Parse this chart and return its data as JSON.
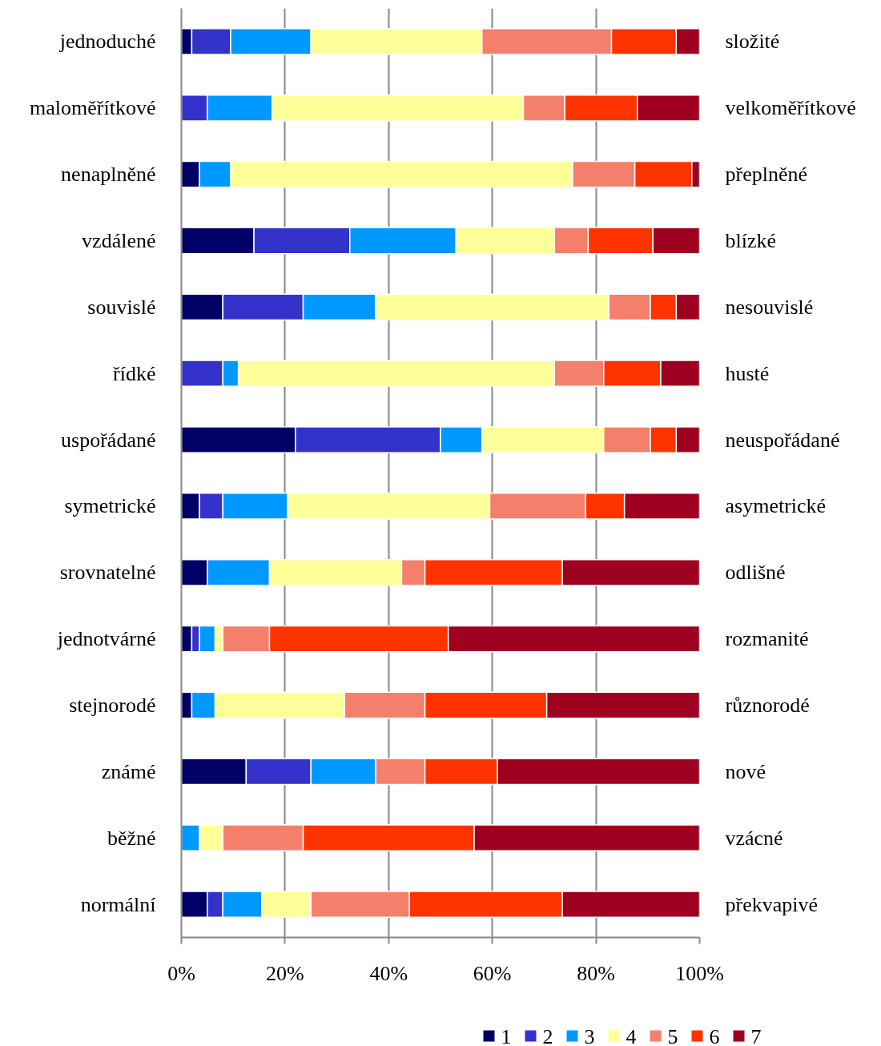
{
  "chart_data": {
    "type": "bar",
    "orientation": "horizontal",
    "stacked": true,
    "categories": [
      "jednoduché",
      "maloměřítkové",
      "nenaplněné",
      "vzdálené",
      "souvislé",
      "řídké",
      "uspořádané",
      "symetrické",
      "srovnatelné",
      "jednotvárné",
      "stejnorodé",
      "známé",
      "běžné",
      "normální"
    ],
    "y2_categories": [
      "složité",
      "velkoměřítkové",
      "přeplněné",
      "blízké",
      "nesouvislé",
      "husté",
      "neuspořádané",
      "asymetrické",
      "odlišné",
      "rozmanité",
      "různorodé",
      "nové",
      "vzácné",
      "překvapivé"
    ],
    "series": [
      {
        "name": "1",
        "color": "#000066",
        "values": [
          2,
          0,
          3.5,
          14,
          8,
          0,
          22,
          3.5,
          5,
          2,
          2,
          12.5,
          0,
          5
        ]
      },
      {
        "name": "2",
        "color": "#3333cc",
        "values": [
          7.5,
          5,
          0,
          18.5,
          15.5,
          8,
          28,
          4.5,
          0,
          1.5,
          0,
          12.5,
          0,
          3
        ]
      },
      {
        "name": "3",
        "color": "#0099ff",
        "values": [
          15.5,
          12.5,
          6,
          20.5,
          14,
          3,
          8,
          12.5,
          12,
          3,
          4.5,
          12.5,
          3.5,
          7.5
        ]
      },
      {
        "name": "4",
        "color": "#ffff99",
        "values": [
          33,
          48.5,
          66,
          19,
          45,
          61,
          23.5,
          39,
          25.5,
          1.5,
          25,
          0,
          4.5,
          9.5
        ]
      },
      {
        "name": "5",
        "color": "#f4806c",
        "values": [
          25,
          8,
          12,
          6.5,
          8,
          9.5,
          9,
          18.5,
          4.5,
          9,
          15.5,
          9.5,
          15.5,
          19
        ]
      },
      {
        "name": "6",
        "color": "#ff3300",
        "values": [
          12.5,
          14,
          11,
          12.5,
          5,
          11,
          5,
          7.5,
          26.5,
          34.5,
          23.5,
          14,
          33,
          29.5
        ]
      },
      {
        "name": "7",
        "color": "#a00020",
        "values": [
          4.5,
          12,
          1.5,
          9,
          4.5,
          7.5,
          4.5,
          14.5,
          26.5,
          48.5,
          29.5,
          39,
          43.5,
          26.5
        ]
      }
    ],
    "xlim": [
      0,
      100
    ],
    "xticks": [
      {
        "value": 0,
        "label": "0%"
      },
      {
        "value": 20,
        "label": "20%"
      },
      {
        "value": 40,
        "label": "40%"
      },
      {
        "value": 60,
        "label": "60%"
      },
      {
        "value": 80,
        "label": "80%"
      },
      {
        "value": 100,
        "label": "100%"
      }
    ],
    "grid": "x",
    "legend": "bottom"
  }
}
